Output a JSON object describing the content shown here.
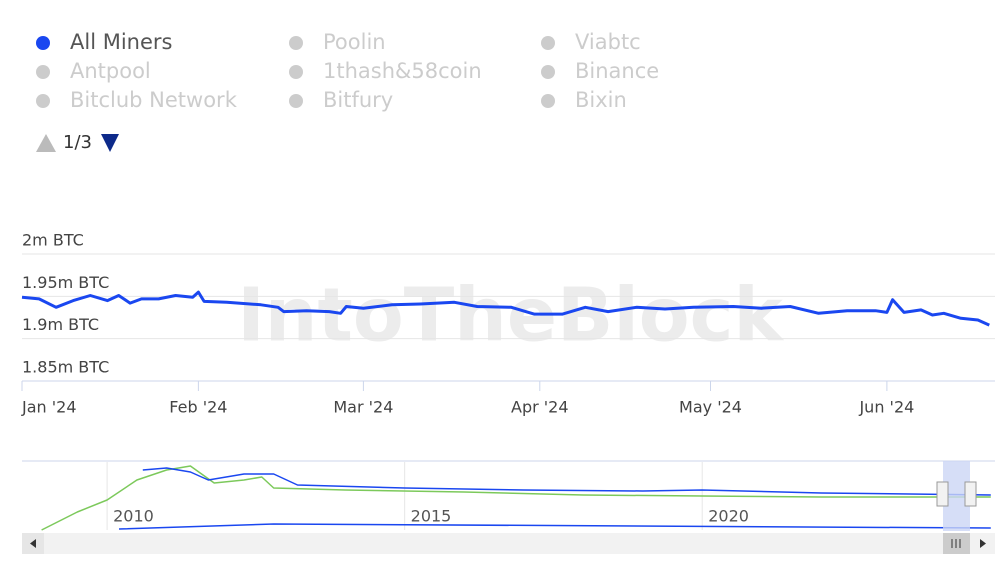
{
  "chart_data": [
    {
      "type": "line",
      "watermark": "IntoTheBlock",
      "legend": {
        "inactive": [
          "Poolin",
          "Viabtc",
          "Antpool",
          "1thash&58coin",
          "Binance",
          "Bitclub Network",
          "Bitfury",
          "Bixin"
        ],
        "inactive_color": "#cccccc",
        "page": "1/3"
      },
      "x": [
        0,
        3,
        6,
        9,
        12,
        15,
        17,
        19,
        21,
        24,
        27,
        30,
        31,
        32,
        36,
        42,
        45,
        46,
        50,
        54,
        56,
        57,
        60,
        65,
        70,
        76,
        80,
        86,
        90,
        95,
        99,
        103,
        108,
        113,
        118,
        125,
        130,
        135,
        140,
        145,
        150,
        152,
        153,
        155,
        158,
        160,
        162,
        165,
        168,
        170
      ],
      "series": [
        {
          "name": "All Miners",
          "color": "#1a47f0",
          "values": [
            1949000,
            1947000,
            1937000,
            1945000,
            1951000,
            1945000,
            1951000,
            1942000,
            1947000,
            1947000,
            1951000,
            1949000,
            1955000,
            1944000,
            1943000,
            1940000,
            1937000,
            1932000,
            1933000,
            1932000,
            1930000,
            1938000,
            1936000,
            1940000,
            1941000,
            1943000,
            1938000,
            1937000,
            1929000,
            1929000,
            1937000,
            1932000,
            1937000,
            1935000,
            1937000,
            1938000,
            1936000,
            1938000,
            1930000,
            1933000,
            1933000,
            1931000,
            1946000,
            1931000,
            1934000,
            1928000,
            1930000,
            1924000,
            1922000,
            1916000
          ]
        }
      ],
      "xlim": [
        0,
        171
      ],
      "xticks": [
        {
          "value": 0,
          "label": "Jan '24"
        },
        {
          "value": 31,
          "label": "Feb '24"
        },
        {
          "value": 60,
          "label": "Mar '24"
        },
        {
          "value": 91,
          "label": "Apr '24"
        },
        {
          "value": 121,
          "label": "May '24"
        },
        {
          "value": 152,
          "label": "Jun '24"
        }
      ],
      "ylim": [
        1850000,
        2000000
      ],
      "yticks": [
        {
          "value": 1850000,
          "label": "1.85m BTC"
        },
        {
          "value": 1900000,
          "label": "1.9m BTC"
        },
        {
          "value": 1950000,
          "label": "1.95m BTC"
        },
        {
          "value": 2000000,
          "label": "2m BTC"
        }
      ],
      "grid": true
    },
    {
      "type": "line",
      "series": [
        {
          "color": "#7cc95b",
          "x": [
            2008.9,
            2009.5,
            2010.0,
            2010.5,
            2011.0,
            2011.4,
            2011.8,
            2012.3,
            2012.6,
            2012.8,
            2014,
            2016,
            2018,
            2020,
            2022,
            2024.85
          ],
          "values": [
            0,
            990000,
            1650000,
            2750000,
            3300000,
            3520000,
            2585000,
            2750000,
            2915000,
            2310000,
            2200000,
            2090000,
            1925000,
            1870000,
            1815000,
            1815000
          ]
        },
        {
          "color": "#1a47f0",
          "x": [
            2010.6,
            2011.0,
            2011.4,
            2011.7,
            2012.3,
            2012.8,
            2013.2,
            2015,
            2017,
            2019,
            2020,
            2022,
            2024.85
          ],
          "values": [
            3300000,
            3410000,
            3190000,
            2750000,
            3080000,
            3080000,
            2475000,
            2310000,
            2200000,
            2145000,
            2200000,
            2035000,
            1925000
          ]
        },
        {
          "color": "#1a47f0",
          "x": [
            2010.2,
            2012.8,
            2024.85
          ],
          "values": [
            55000,
            330000,
            110000
          ]
        }
      ],
      "xlim": [
        2008.57,
        2024.92
      ],
      "xticks": [
        2010,
        2015,
        2020
      ],
      "ylim": [
        0,
        3740000
      ]
    }
  ]
}
